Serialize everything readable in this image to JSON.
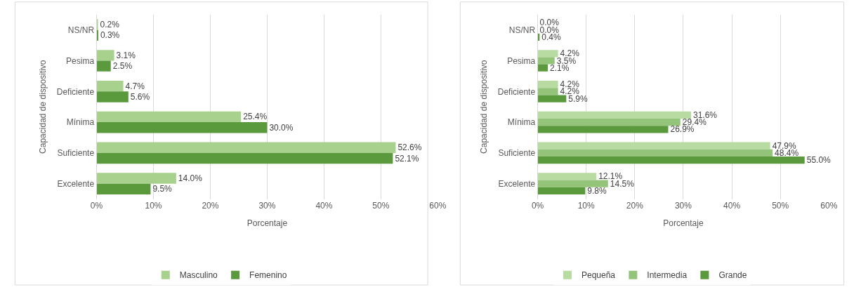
{
  "chart_data": [
    {
      "type": "bar",
      "orientation": "horizontal",
      "categories": [
        "NS/NR",
        "Pesima",
        "Deficiente",
        "Mínima",
        "Suficiente",
        "Excelente"
      ],
      "series": [
        {
          "name": "Masculino",
          "color": "#a9d18e",
          "values": [
            0.2,
            3.1,
            4.7,
            25.4,
            52.6,
            14.0
          ],
          "value_labels": [
            "0.2%",
            "3.1%",
            "4.7%",
            "25.4%",
            "52.6%",
            "14.0%"
          ]
        },
        {
          "name": "Femenino",
          "color": "#5a9a3c",
          "values": [
            0.3,
            2.5,
            5.6,
            30.0,
            52.1,
            9.5
          ],
          "value_labels": [
            "0.3%",
            "2.5%",
            "5.6%",
            "30.0%",
            "52.1%",
            "9.5%"
          ]
        }
      ],
      "xlim": [
        0,
        60
      ],
      "xticks": [
        {
          "value": 0,
          "label": "0%"
        },
        {
          "value": 10,
          "label": "10%"
        },
        {
          "value": 20,
          "label": "20%"
        },
        {
          "value": 30,
          "label": "30%"
        },
        {
          "value": 40,
          "label": "40%"
        },
        {
          "value": 50,
          "label": "50%"
        },
        {
          "value": 60,
          "label": "60%"
        }
      ],
      "xlabel": "Porcentaje",
      "ylabel": "Capacidad de dispositivo",
      "grid": "x",
      "legend": "bottom"
    },
    {
      "type": "bar",
      "orientation": "horizontal",
      "categories": [
        "NS/NR",
        "Pesima",
        "Deficiente",
        "Mínima",
        "Suficiente",
        "Excelente"
      ],
      "series": [
        {
          "name": "Pequeña",
          "color": "#b7dba0",
          "values": [
            0.0,
            4.2,
            4.2,
            31.6,
            47.9,
            12.1
          ],
          "value_labels": [
            "0.0%",
            "4.2%",
            "4.2%",
            "31.6%",
            "47.9%",
            "12.1%"
          ]
        },
        {
          "name": "Intermedia",
          "color": "#94c47a",
          "values": [
            0.0,
            3.5,
            4.2,
            29.4,
            48.4,
            14.5
          ],
          "value_labels": [
            "0.0%",
            "3.5%",
            "4.2%",
            "29.4%",
            "48.4%",
            "14.5%"
          ]
        },
        {
          "name": "Grande",
          "color": "#5a9a3c",
          "values": [
            0.4,
            2.1,
            5.9,
            26.9,
            55.0,
            9.8
          ],
          "value_labels": [
            "0.4%",
            "2.1%",
            "5.9%",
            "26.9%",
            "55.0%",
            "9.8%"
          ]
        }
      ],
      "xlim": [
        0,
        60
      ],
      "xticks": [
        {
          "value": 0,
          "label": "0%"
        },
        {
          "value": 10,
          "label": "10%"
        },
        {
          "value": 20,
          "label": "20%"
        },
        {
          "value": 30,
          "label": "30%"
        },
        {
          "value": 40,
          "label": "40%"
        },
        {
          "value": 50,
          "label": "50%"
        },
        {
          "value": 60,
          "label": "60%"
        }
      ],
      "xlabel": "Porcentaje",
      "ylabel": "Capacidad de dispositivo",
      "grid": "x",
      "legend": "bottom"
    }
  ]
}
